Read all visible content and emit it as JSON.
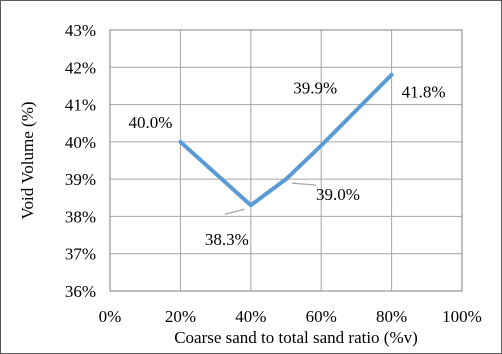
{
  "chart_data": {
    "type": "line",
    "title": "",
    "xlabel": "Coarse sand to total sand ratio (%v)",
    "ylabel": "Void Volume (%)",
    "x_ticks": [
      "0%",
      "20%",
      "40%",
      "60%",
      "80%",
      "100%"
    ],
    "y_ticks": [
      "36%",
      "37%",
      "38%",
      "39%",
      "40%",
      "41%",
      "42%",
      "43%"
    ],
    "xlim": [
      0,
      100
    ],
    "ylim": [
      36,
      43
    ],
    "grid": true,
    "legend": "none",
    "series": [
      {
        "x": [
          20,
          40,
          50,
          60,
          80
        ],
        "y": [
          40.0,
          38.3,
          39.0,
          39.9,
          41.8
        ],
        "color": "#5b9bd5"
      }
    ],
    "data_labels": [
      {
        "text": "40.0%",
        "x": 20,
        "y": 40.0
      },
      {
        "text": "38.3%",
        "x": 40,
        "y": 38.3
      },
      {
        "text": "39.0%",
        "x": 50,
        "y": 39.0
      },
      {
        "text": "39.9%",
        "x": 60,
        "y": 39.9
      },
      {
        "text": "41.8%",
        "x": 80,
        "y": 41.8
      }
    ]
  }
}
